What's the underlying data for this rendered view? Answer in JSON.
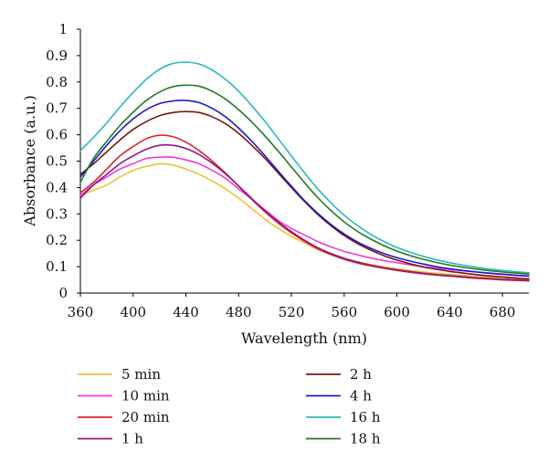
{
  "chart_data": {
    "type": "line",
    "xlabel": "Wavelength (nm)",
    "ylabel": "Absorbance (a.u.)",
    "xlim": [
      360,
      700
    ],
    "ylim": [
      0,
      1
    ],
    "x_ticks": [
      "360",
      "400",
      "440",
      "480",
      "520",
      "560",
      "600",
      "640",
      "680"
    ],
    "y_ticks": [
      "0",
      "0.1",
      "0.2",
      "0.3",
      "0.4",
      "0.5",
      "0.6",
      "0.7",
      "0.8",
      "0.9",
      "1"
    ],
    "grid": false,
    "legend_position": "bottom",
    "x": [
      360,
      370,
      380,
      390,
      400,
      410,
      420,
      430,
      440,
      450,
      460,
      470,
      480,
      490,
      500,
      510,
      520,
      530,
      540,
      550,
      560,
      570,
      580,
      590,
      600,
      610,
      620,
      630,
      640,
      650,
      660,
      670,
      680,
      690,
      700
    ],
    "series": [
      {
        "name": "5 min",
        "color": "#f2c12e",
        "values": [
          0.37,
          0.39,
          0.41,
          0.44,
          0.465,
          0.48,
          0.49,
          0.485,
          0.47,
          0.45,
          0.425,
          0.395,
          0.36,
          0.32,
          0.28,
          0.245,
          0.215,
          0.19,
          0.165,
          0.145,
          0.13,
          0.118,
          0.108,
          0.1,
          0.092,
          0.086,
          0.08,
          0.075,
          0.071,
          0.067,
          0.063,
          0.06,
          0.057,
          0.054,
          0.052
        ]
      },
      {
        "name": "10 min",
        "color": "#ef3bd6",
        "values": [
          0.37,
          0.41,
          0.44,
          0.47,
          0.49,
          0.51,
          0.515,
          0.515,
          0.505,
          0.49,
          0.465,
          0.435,
          0.395,
          0.355,
          0.315,
          0.275,
          0.245,
          0.22,
          0.195,
          0.175,
          0.158,
          0.145,
          0.133,
          0.123,
          0.115,
          0.107,
          0.1,
          0.094,
          0.089,
          0.084,
          0.08,
          0.076,
          0.072,
          0.068,
          0.065
        ]
      },
      {
        "name": "20 min",
        "color": "#e02424",
        "values": [
          0.38,
          0.42,
          0.47,
          0.52,
          0.555,
          0.585,
          0.598,
          0.593,
          0.572,
          0.54,
          0.5,
          0.455,
          0.405,
          0.355,
          0.308,
          0.265,
          0.228,
          0.196,
          0.168,
          0.146,
          0.128,
          0.114,
          0.103,
          0.094,
          0.086,
          0.079,
          0.073,
          0.068,
          0.064,
          0.06,
          0.056,
          0.053,
          0.05,
          0.048,
          0.046
        ]
      },
      {
        "name": "1 h",
        "color": "#8b1a8b",
        "values": [
          0.36,
          0.41,
          0.45,
          0.49,
          0.52,
          0.545,
          0.56,
          0.56,
          0.548,
          0.525,
          0.492,
          0.452,
          0.406,
          0.358,
          0.312,
          0.27,
          0.233,
          0.2,
          0.172,
          0.15,
          0.132,
          0.118,
          0.106,
          0.096,
          0.088,
          0.081,
          0.075,
          0.07,
          0.066,
          0.062,
          0.058,
          0.055,
          0.052,
          0.05,
          0.048
        ]
      },
      {
        "name": "2 h",
        "color": "#7a1414",
        "values": [
          0.45,
          0.49,
          0.535,
          0.58,
          0.62,
          0.65,
          0.672,
          0.684,
          0.688,
          0.684,
          0.668,
          0.642,
          0.605,
          0.56,
          0.51,
          0.455,
          0.4,
          0.347,
          0.298,
          0.255,
          0.218,
          0.188,
          0.163,
          0.142,
          0.125,
          0.111,
          0.099,
          0.09,
          0.082,
          0.076,
          0.07,
          0.065,
          0.061,
          0.057,
          0.054
        ]
      },
      {
        "name": "4 h",
        "color": "#1a1acc",
        "values": [
          0.44,
          0.5,
          0.56,
          0.615,
          0.66,
          0.695,
          0.718,
          0.728,
          0.73,
          0.722,
          0.7,
          0.668,
          0.625,
          0.575,
          0.52,
          0.462,
          0.405,
          0.35,
          0.302,
          0.26,
          0.224,
          0.194,
          0.17,
          0.15,
          0.134,
          0.121,
          0.11,
          0.1,
          0.092,
          0.086,
          0.08,
          0.075,
          0.071,
          0.067,
          0.064
        ]
      },
      {
        "name": "16 h",
        "color": "#29b8bf",
        "values": [
          0.54,
          0.59,
          0.645,
          0.705,
          0.76,
          0.81,
          0.848,
          0.87,
          0.875,
          0.868,
          0.845,
          0.81,
          0.765,
          0.71,
          0.65,
          0.585,
          0.52,
          0.455,
          0.395,
          0.342,
          0.295,
          0.256,
          0.223,
          0.196,
          0.173,
          0.155,
          0.139,
          0.126,
          0.115,
          0.106,
          0.098,
          0.091,
          0.086,
          0.081,
          0.077
        ]
      },
      {
        "name": "18 h",
        "color": "#1f7a1f",
        "values": [
          0.42,
          0.51,
          0.575,
          0.635,
          0.685,
          0.73,
          0.762,
          0.782,
          0.788,
          0.784,
          0.765,
          0.735,
          0.695,
          0.648,
          0.595,
          0.538,
          0.478,
          0.418,
          0.362,
          0.313,
          0.27,
          0.234,
          0.205,
          0.18,
          0.159,
          0.142,
          0.128,
          0.116,
          0.106,
          0.098,
          0.091,
          0.085,
          0.08,
          0.076,
          0.072
        ]
      }
    ]
  }
}
